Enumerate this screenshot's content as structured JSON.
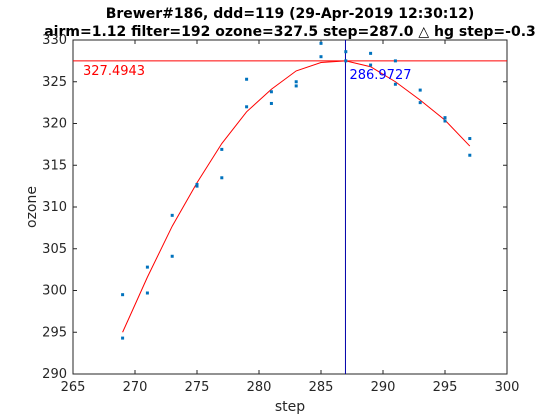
{
  "colors": {
    "points": "#0072bd",
    "fit": "#ff0000",
    "max_hline": "#ff0000",
    "max_vline": "#0000aa",
    "axes": "#262626"
  },
  "chart_data": {
    "type": "scatter",
    "title_line1": "Brewer#186, ddd=119 (29-Apr-2019 12:30:12)",
    "title_line2": "airm=1.12  filter=192 ozone=327.5  step=287.0 △ hg step=-0.3",
    "xlabel": "step",
    "ylabel": "ozone",
    "xlim": [
      265,
      300
    ],
    "ylim": [
      290,
      330
    ],
    "xticks": [
      265,
      270,
      275,
      280,
      285,
      290,
      295,
      300
    ],
    "yticks": [
      290,
      295,
      300,
      305,
      310,
      315,
      320,
      325,
      330
    ],
    "grid": false,
    "points": [
      {
        "x": 269,
        "y": 299.5
      },
      {
        "x": 269,
        "y": 294.3
      },
      {
        "x": 271,
        "y": 302.8
      },
      {
        "x": 271,
        "y": 299.7
      },
      {
        "x": 273,
        "y": 309.0
      },
      {
        "x": 273,
        "y": 304.1
      },
      {
        "x": 275,
        "y": 312.5
      },
      {
        "x": 275,
        "y": 312.7
      },
      {
        "x": 277,
        "y": 316.9
      },
      {
        "x": 277,
        "y": 313.5
      },
      {
        "x": 279,
        "y": 325.3
      },
      {
        "x": 279,
        "y": 322.0
      },
      {
        "x": 281,
        "y": 323.8
      },
      {
        "x": 281,
        "y": 322.4
      },
      {
        "x": 283,
        "y": 325.0
      },
      {
        "x": 283,
        "y": 324.5
      },
      {
        "x": 285,
        "y": 329.6
      },
      {
        "x": 285,
        "y": 328.0
      },
      {
        "x": 287,
        "y": 328.6
      },
      {
        "x": 287,
        "y": 327.5
      },
      {
        "x": 289,
        "y": 328.4
      },
      {
        "x": 289,
        "y": 327.0
      },
      {
        "x": 291,
        "y": 327.5
      },
      {
        "x": 291,
        "y": 324.7
      },
      {
        "x": 293,
        "y": 324.0
      },
      {
        "x": 293,
        "y": 322.5
      },
      {
        "x": 295,
        "y": 320.7
      },
      {
        "x": 295,
        "y": 320.3
      },
      {
        "x": 297,
        "y": 318.2
      },
      {
        "x": 297,
        "y": 316.2
      }
    ],
    "fit": {
      "x": [
        269,
        271,
        273,
        275,
        277,
        279,
        281,
        283,
        285,
        287,
        289,
        291,
        293,
        295,
        297
      ],
      "y": [
        295.0,
        301.6,
        307.7,
        312.9,
        317.6,
        321.4,
        324.1,
        326.3,
        327.3,
        327.5,
        326.8,
        325.0,
        322.8,
        320.4,
        317.3
      ]
    },
    "max_ozone": 327.4943,
    "max_ozone_label": "327.4943",
    "max_step": 286.9727,
    "max_step_label": "286.9727"
  }
}
